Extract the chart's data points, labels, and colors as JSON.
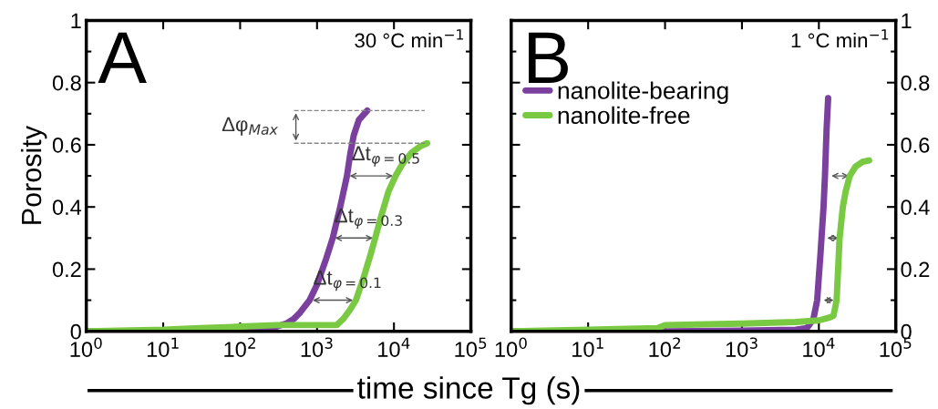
{
  "chart_data": [
    {
      "type": "line",
      "xlabel": "time since Tg (s)",
      "ylabel": "Porosity",
      "log": "x",
      "xlim": [
        1,
        100000
      ],
      "ylim": [
        0,
        1
      ],
      "xticks": [
        {
          "value": 1,
          "label": "10$^{0}$"
        },
        {
          "value": 10,
          "label": "10$^{1}$"
        },
        {
          "value": 100,
          "label": "10$^{2}$"
        },
        {
          "value": 1000,
          "label": "10$^{3}$"
        },
        {
          "value": 10000,
          "label": "10$^{4}$"
        },
        {
          "value": 100000,
          "label": "10$^{5}$"
        }
      ],
      "yticks": [
        0,
        0.2,
        0.4,
        0.6,
        0.8,
        1
      ],
      "ref_lines": [
        {
          "axis": "y",
          "value": 0.71,
          "label": null,
          "color": "#888888",
          "line_style": "dashed"
        },
        {
          "axis": "y",
          "value": 0.605,
          "label": null,
          "color": "#888888",
          "line_style": "dashed"
        }
      ],
      "annotations": [
        "A",
        "30 °C min$^{−1}$",
        "Δφ$_{Max}$",
        "Δt$_{φ=0.5}$",
        "Δt$_{φ=0.3}$",
        "Δt$_{φ=0.1}$"
      ],
      "series": [
        {
          "color": "#7b3f9e",
          "x": [
            1,
            10,
            100,
            200,
            300,
            400,
            500,
            600,
            800,
            1000,
            1300,
            1600,
            2000,
            2450,
            2700,
            3000,
            3500,
            4500
          ],
          "values": [
            0,
            0,
            0.005,
            0.01,
            0.015,
            0.025,
            0.04,
            0.06,
            0.1,
            0.15,
            0.23,
            0.3,
            0.4,
            0.5,
            0.57,
            0.63,
            0.68,
            0.71
          ]
        },
        {
          "color": "#7ac943",
          "x": [
            1,
            10,
            30,
            100,
            300,
            1000,
            1800,
            2200,
            2700,
            3200,
            4000,
            5000,
            5700,
            7000,
            8500,
            10500,
            13000,
            17000,
            22000,
            27000
          ],
          "values": [
            0,
            0.005,
            0.01,
            0.015,
            0.02,
            0.02,
            0.02,
            0.04,
            0.07,
            0.1,
            0.17,
            0.25,
            0.3,
            0.38,
            0.45,
            0.5,
            0.54,
            0.575,
            0.595,
            0.605
          ]
        }
      ]
    },
    {
      "type": "line",
      "log": "x",
      "xlim": [
        1,
        100000
      ],
      "ylim": [
        0,
        1
      ],
      "legend": "upper left",
      "xticks": [
        {
          "value": 1,
          "label": "10$^{0}$"
        },
        {
          "value": 10,
          "label": "10$^{1}$"
        },
        {
          "value": 100,
          "label": "10$^{2}$"
        },
        {
          "value": 1000,
          "label": "10$^{3}$"
        },
        {
          "value": 10000,
          "label": "10$^{4}$"
        },
        {
          "value": 100000,
          "label": "10$^{5}$"
        }
      ],
      "yticks": [
        0,
        0.2,
        0.4,
        0.6,
        0.8,
        1
      ],
      "annotations": [
        "B",
        "1 °C min$^{−1}$"
      ],
      "series": [
        {
          "name": "nanolite-bearing",
          "color": "#7b3f9e",
          "x": [
            1,
            10,
            100,
            1000,
            5000,
            7000,
            8500,
            9500,
            10500,
            11500,
            12000,
            12600,
            13200
          ],
          "values": [
            0,
            0,
            0,
            0.002,
            0.005,
            0.01,
            0.04,
            0.1,
            0.25,
            0.4,
            0.5,
            0.65,
            0.75
          ]
        },
        {
          "name": "nanolite-free",
          "color": "#7ac943",
          "x": [
            1,
            10,
            80,
            100,
            1000,
            5000,
            10000,
            14000,
            15500,
            17000,
            18600,
            20500,
            22300,
            25200,
            30000,
            37000,
            45000
          ],
          "values": [
            0,
            0.005,
            0.01,
            0.02,
            0.025,
            0.03,
            0.035,
            0.045,
            0.05,
            0.1,
            0.3,
            0.4,
            0.45,
            0.5,
            0.53,
            0.545,
            0.55
          ]
        }
      ]
    }
  ]
}
